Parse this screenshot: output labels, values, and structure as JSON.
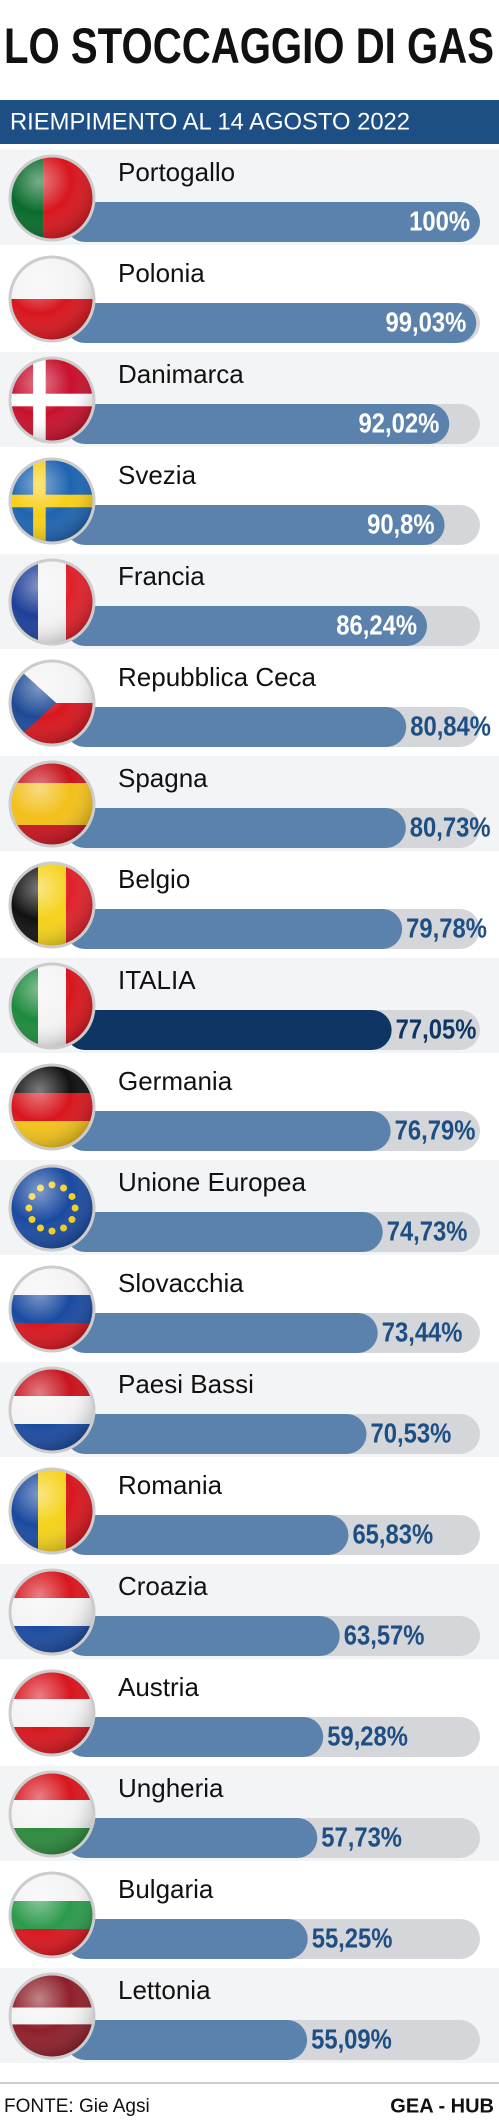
{
  "chart_data": {
    "type": "bar",
    "orientation": "horizontal",
    "title": "LO STOCCAGGIO DI GAS",
    "subtitle": "RIEMPIMENTO AL 14 AGOSTO 2022",
    "categories": [
      "Portogallo",
      "Polonia",
      "Danimarca",
      "Svezia",
      "Francia",
      "Repubblica Ceca",
      "Spagna",
      "Belgio",
      "ITALIA",
      "Germania",
      "Unione Europea",
      "Slovacchia",
      "Paesi Bassi",
      "Romania",
      "Croazia",
      "Austria",
      "Ungheria",
      "Bulgaria",
      "Lettonia"
    ],
    "values": [
      100,
      99.03,
      92.02,
      90.8,
      86.24,
      80.84,
      80.73,
      79.78,
      77.05,
      76.79,
      74.73,
      73.44,
      70.53,
      65.83,
      63.57,
      59.28,
      57.73,
      55.25,
      55.09
    ],
    "value_labels": [
      "100%",
      "99,03%",
      "92,02%",
      "90,8%",
      "86,24%",
      "80,84%",
      "80,73%",
      "79,78%",
      "77,05%",
      "76,79%",
      "74,73%",
      "73,44%",
      "70,53%",
      "65,83%",
      "63,57%",
      "59,28%",
      "57,73%",
      "55,25%",
      "55,09%"
    ],
    "colors": [
      "#5b82ad",
      "#5b82ad",
      "#5b82ad",
      "#5b82ad",
      "#5b82ad",
      "#5b82ad",
      "#5b82ad",
      "#5b82ad",
      "#0f3564",
      "#5b82ad",
      "#5b82ad",
      "#5b82ad",
      "#5b82ad",
      "#5b82ad",
      "#5b82ad",
      "#5b82ad",
      "#5b82ad",
      "#5b82ad",
      "#5b82ad"
    ],
    "xlim": [
      0,
      100
    ],
    "source": "FONTE: Gie Agsi",
    "credit": "GEA - HUB"
  }
}
